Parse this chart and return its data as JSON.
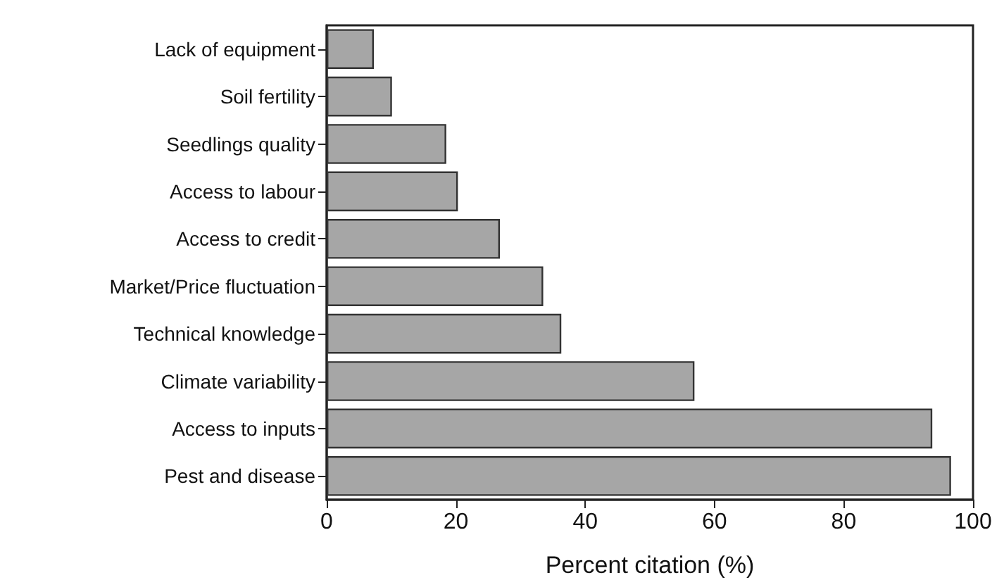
{
  "chart_data": {
    "type": "bar",
    "orientation": "horizontal",
    "xlabel": "Percent citation (%)",
    "categories": [
      "Lack of equipment",
      "Soil fertility",
      "Seedlings quality",
      "Access to labour",
      "Access to credit",
      "Market/Price fluctuation",
      "Technical knowledge",
      "Climate variability",
      "Access to inputs",
      "Pest and disease"
    ],
    "values": [
      7.3,
      10.1,
      18.5,
      20.3,
      26.8,
      33.5,
      36.3,
      56.9,
      93.7,
      96.6
    ],
    "color": "#a6a6a6",
    "xlim": [
      0,
      100
    ],
    "xticks": [
      0,
      20,
      40,
      60,
      80,
      100
    ],
    "grid": false
  }
}
